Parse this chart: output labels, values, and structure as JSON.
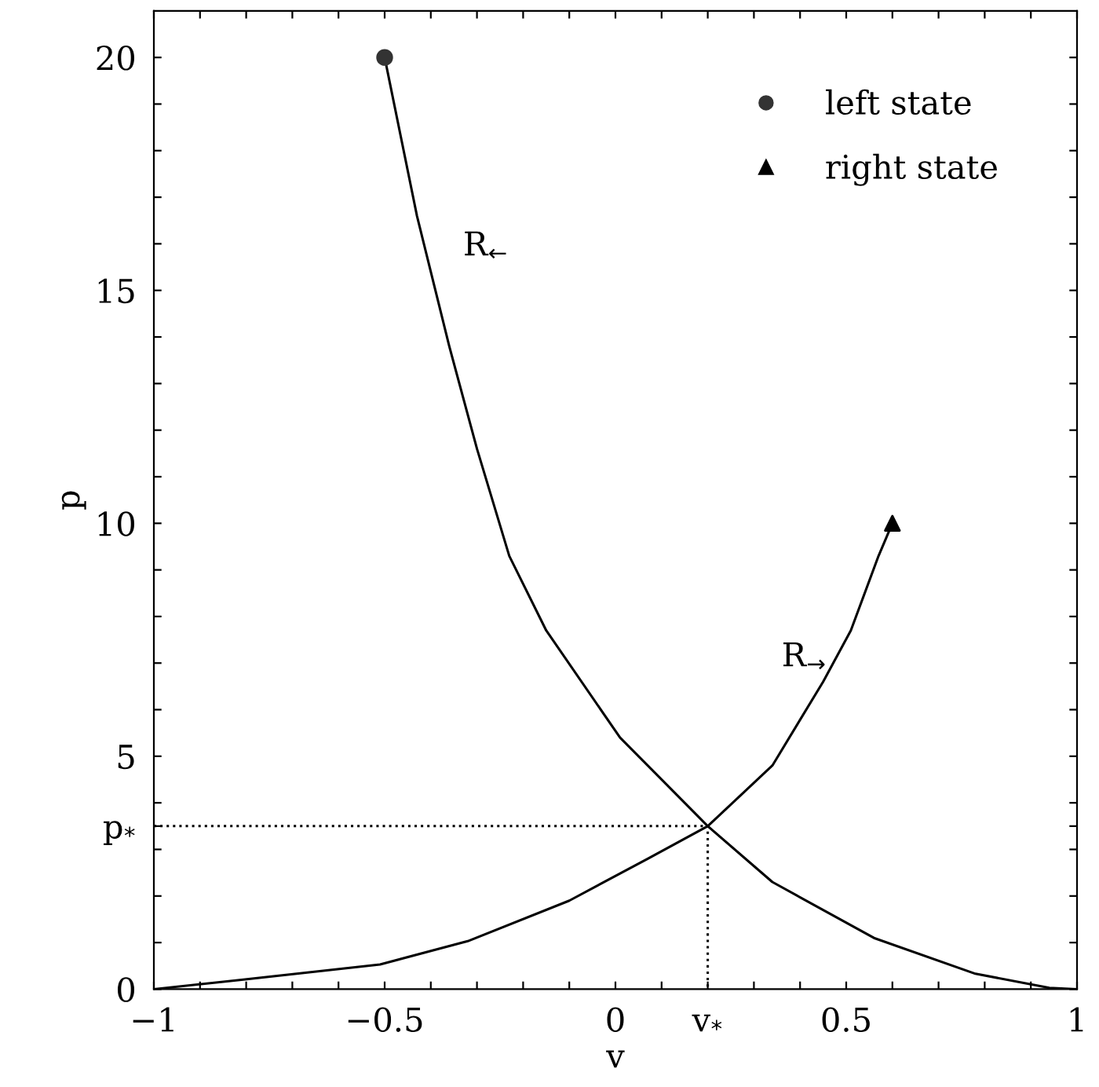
{
  "chart_data": {
    "type": "line",
    "xlabel": "v",
    "ylabel": "p",
    "xlim": [
      -1,
      1
    ],
    "ylim": [
      0,
      21
    ],
    "xticks": [
      -1,
      {
        "value": -0.9,
        "label": null
      },
      {
        "value": -0.8,
        "label": null
      },
      {
        "value": -0.7,
        "label": null
      },
      {
        "value": -0.6,
        "label": null
      },
      -0.5,
      {
        "value": -0.4,
        "label": null
      },
      {
        "value": -0.3,
        "label": null
      },
      {
        "value": -0.2,
        "label": null
      },
      {
        "value": -0.1,
        "label": null
      },
      0,
      {
        "value": 0.1,
        "label": null
      },
      {
        "value": 0.2,
        "label": "v$_{*}$"
      },
      {
        "value": 0.3,
        "label": null
      },
      {
        "value": 0.4,
        "label": null
      },
      0.5,
      {
        "value": 0.6,
        "label": null
      },
      {
        "value": 0.7,
        "label": null
      },
      {
        "value": 0.8,
        "label": null
      },
      {
        "value": 0.9,
        "label": null
      },
      1
    ],
    "yticks": [
      0,
      {
        "value": 1,
        "label": null
      },
      {
        "value": 2,
        "label": null
      },
      {
        "value": 3,
        "label": null
      },
      {
        "value": 3.5,
        "label": "p$_{*}$"
      },
      {
        "value": 4,
        "label": null
      },
      5,
      {
        "value": 6,
        "label": null
      },
      {
        "value": 7,
        "label": null
      },
      {
        "value": 8,
        "label": null
      },
      {
        "value": 9,
        "label": null
      },
      10,
      {
        "value": 11,
        "label": null
      },
      {
        "value": 12,
        "label": null
      },
      {
        "value": 13,
        "label": null
      },
      {
        "value": 14,
        "label": null
      },
      15,
      {
        "value": 16,
        "label": null
      },
      {
        "value": 17,
        "label": null
      },
      {
        "value": 18,
        "label": null
      },
      {
        "value": 19,
        "label": null
      },
      20
    ],
    "grid": false,
    "legend": "top right",
    "series": [
      {
        "color": "#000000",
        "line_style": "solid",
        "x": [
          -0.5,
          -0.43,
          -0.36,
          -0.3,
          -0.23,
          -0.15,
          0.01,
          0.2,
          0.34,
          0.56,
          0.78,
          0.94,
          1
        ],
        "values": [
          20,
          16.6,
          13.8,
          11.6,
          9.3,
          7.7,
          5.4,
          3.5,
          2.3,
          1.1,
          0.33,
          0.03,
          0
        ]
      },
      {
        "color": "#000000",
        "line_style": "solid",
        "x": [
          -1,
          -0.81,
          -0.51,
          -0.32,
          -0.1,
          0.07,
          0.2,
          0.34,
          0.45,
          0.51,
          0.57,
          0.6
        ],
        "values": [
          0,
          0.2,
          0.53,
          1.03,
          1.9,
          2.8,
          3.5,
          4.8,
          6.6,
          7.7,
          9.3,
          10
        ]
      },
      {
        "color": "#000000",
        "line_style": "dotted",
        "x": [
          -1,
          0.2,
          0.2
        ],
        "values": [
          3.5,
          3.5,
          0
        ]
      },
      {
        "type": "scatter",
        "name": "left state",
        "color": "#333333",
        "marker": "circle",
        "x": [
          -0.5
        ],
        "values": [
          20
        ]
      },
      {
        "type": "scatter",
        "name": "right state",
        "color": "#000000",
        "marker": "triangle",
        "x": [
          0.6
        ],
        "values": [
          10
        ]
      }
    ],
    "annotations": [
      "R$_{←}$",
      "R$_{→}$"
    ]
  }
}
